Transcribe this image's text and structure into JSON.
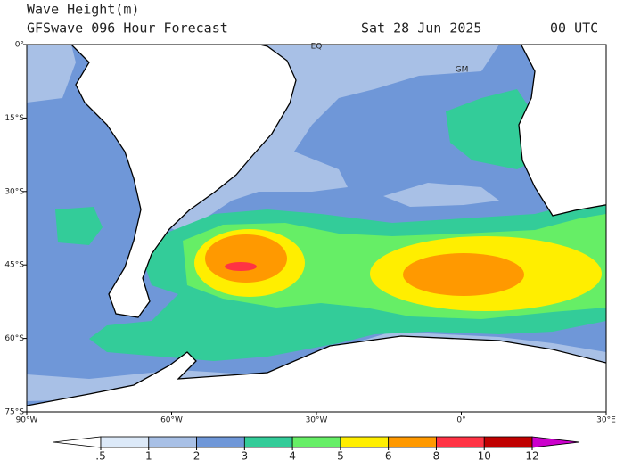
{
  "header": {
    "title": "Wave Height(m)",
    "subtitle": "GFSwave 096 Hour Forecast",
    "date": "Sat 28 Jun 2025",
    "time": "00 UTC"
  },
  "map": {
    "lat_labels": [
      "0°",
      "15°S",
      "30°S",
      "45°S",
      "60°S",
      "75°S"
    ],
    "lon_labels": [
      "90°W",
      "60°W",
      "30°W",
      "0°",
      "30°E"
    ],
    "places": [
      "EQ",
      "GM"
    ]
  },
  "colorbar": {
    "levels": [
      {
        "value": 0.5,
        "label": ".5"
      },
      1,
      2,
      3,
      4,
      5,
      6,
      8,
      10,
      12
    ],
    "colors": [
      "#ffffff",
      "#dce9f8",
      "#a8c0e6",
      "#6f97d8",
      "#33cc99",
      "#66ee66",
      "#ffee00",
      "#ff9900",
      "#ff3344",
      "#c00000",
      "#cc00cc"
    ]
  }
}
